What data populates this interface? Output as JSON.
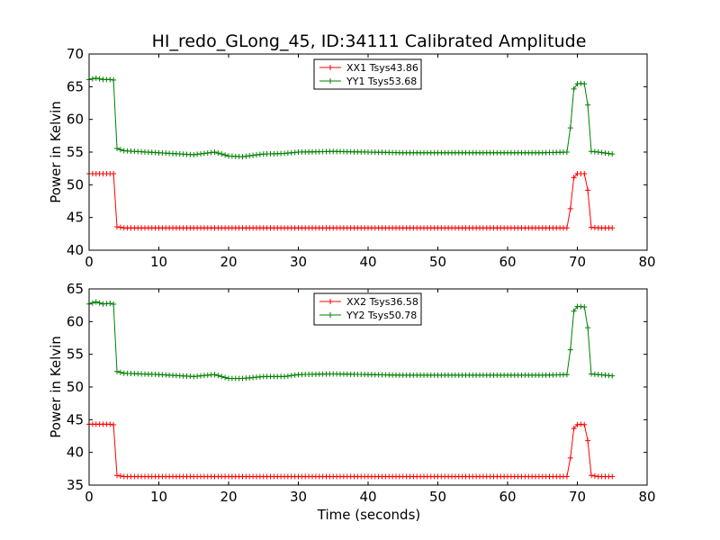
{
  "figure": {
    "title": "HI_redo_GLong_45, ID:34111 Calibrated Amplitude"
  },
  "chart_data": [
    {
      "type": "line",
      "title": "HI_redo_GLong_45, ID:34111 Calibrated Amplitude",
      "xlabel": "",
      "ylabel": "Power in Kelvin",
      "xlim": [
        0,
        80
      ],
      "ylim": [
        40,
        70
      ],
      "xticks": [
        "0",
        "10",
        "20",
        "30",
        "40",
        "50",
        "60",
        "70",
        "80"
      ],
      "yticks": [
        "40",
        "45",
        "50",
        "55",
        "60",
        "65",
        "70"
      ],
      "grid": false,
      "legend_position": "top-center",
      "series": [
        {
          "name": "XX1 Tsys43.86",
          "color": "#ff0000",
          "marker": "+",
          "x": [
            0,
            1,
            2,
            3,
            3.7,
            3.9,
            5,
            10,
            15,
            20,
            25,
            30,
            35,
            40,
            45,
            50,
            55,
            60,
            65,
            68.8,
            69.2,
            69.6,
            70.5,
            71.3,
            71.6,
            72,
            73,
            75
          ],
          "y": [
            51.7,
            51.7,
            51.7,
            51.7,
            51.7,
            43.6,
            43.4,
            43.4,
            43.4,
            43.4,
            43.4,
            43.4,
            43.4,
            43.4,
            43.4,
            43.4,
            43.4,
            43.4,
            43.4,
            43.4,
            49.3,
            51.7,
            51.7,
            51.7,
            47.9,
            43.5,
            43.4,
            43.4
          ]
        },
        {
          "name": "YY1 Tsys53.68",
          "color": "#008000",
          "marker": "+",
          "x": [
            0,
            1,
            2,
            3,
            3.7,
            3.9,
            5,
            10,
            15,
            18,
            20,
            22,
            25,
            28,
            30,
            35,
            40,
            45,
            50,
            55,
            60,
            65,
            68.8,
            69.2,
            69.6,
            70.5,
            71.3,
            71.6,
            72,
            73,
            75
          ],
          "y": [
            66.1,
            66.3,
            66.1,
            66.1,
            66.0,
            55.6,
            55.2,
            54.9,
            54.6,
            55.0,
            54.4,
            54.3,
            54.7,
            54.8,
            55.0,
            55.1,
            55.0,
            54.9,
            54.9,
            54.9,
            54.9,
            54.9,
            55.0,
            62.4,
            65.4,
            65.5,
            65.4,
            60.6,
            55.1,
            55.0,
            54.7
          ]
        }
      ]
    },
    {
      "type": "line",
      "title": "",
      "xlabel": "Time (seconds)",
      "ylabel": "Power in Kelvin",
      "xlim": [
        0,
        80
      ],
      "ylim": [
        35,
        65
      ],
      "xticks": [
        "0",
        "10",
        "20",
        "30",
        "40",
        "50",
        "60",
        "70",
        "80"
      ],
      "yticks": [
        "35",
        "40",
        "45",
        "50",
        "55",
        "60",
        "65"
      ],
      "grid": false,
      "legend_position": "top-center",
      "series": [
        {
          "name": "XX2 Tsys36.58",
          "color": "#ff0000",
          "marker": "+",
          "x": [
            0,
            1,
            2,
            3,
            3.7,
            3.9,
            5,
            10,
            15,
            20,
            25,
            30,
            35,
            40,
            45,
            50,
            55,
            60,
            65,
            68.8,
            69.2,
            69.6,
            70.5,
            71.3,
            71.6,
            72,
            73,
            75
          ],
          "y": [
            44.3,
            44.3,
            44.3,
            44.3,
            44.2,
            36.5,
            36.3,
            36.3,
            36.3,
            36.3,
            36.3,
            36.3,
            36.3,
            36.3,
            36.3,
            36.3,
            36.3,
            36.3,
            36.3,
            36.3,
            42.0,
            44.2,
            44.3,
            44.2,
            40.6,
            36.5,
            36.3,
            36.3
          ]
        },
        {
          "name": "YY2 Tsys50.78",
          "color": "#008000",
          "marker": "+",
          "x": [
            0,
            1,
            2,
            3,
            3.7,
            3.9,
            5,
            10,
            15,
            18,
            20,
            22,
            25,
            28,
            30,
            35,
            40,
            45,
            50,
            55,
            60,
            65,
            68.8,
            69.2,
            69.6,
            70.5,
            71.3,
            71.6,
            72,
            73,
            75
          ],
          "y": [
            62.7,
            63.0,
            62.7,
            62.8,
            62.6,
            52.4,
            52.1,
            51.9,
            51.6,
            51.9,
            51.3,
            51.3,
            51.6,
            51.6,
            51.9,
            52.0,
            51.9,
            51.8,
            51.8,
            51.8,
            51.8,
            51.8,
            51.9,
            59.5,
            62.3,
            62.3,
            62.2,
            57.5,
            52.0,
            51.9,
            51.7
          ]
        }
      ]
    }
  ]
}
